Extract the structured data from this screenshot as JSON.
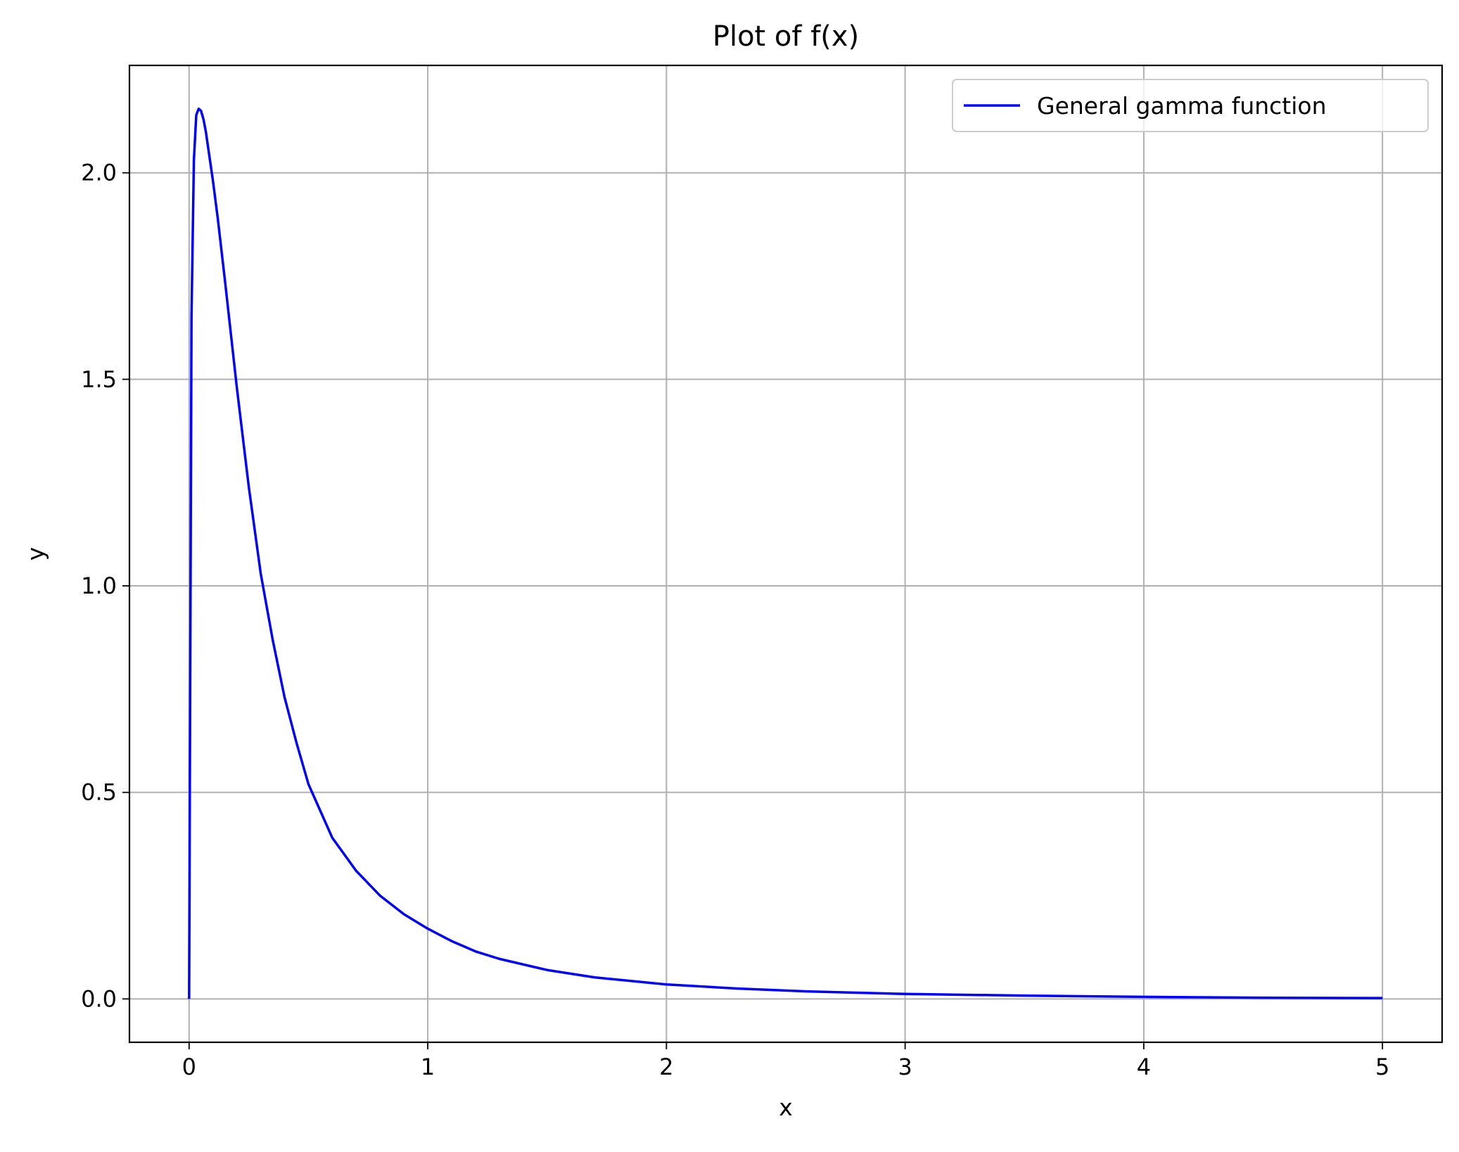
{
  "chart_data": {
    "type": "line",
    "title": "Plot of f(x)",
    "xlabel": "x",
    "ylabel": "y",
    "xlim": [
      -0.25,
      5.25
    ],
    "ylim": [
      -0.105,
      2.26
    ],
    "xticks": [
      0,
      1,
      2,
      3,
      4,
      5
    ],
    "xtick_labels": [
      "0",
      "1",
      "2",
      "3",
      "4",
      "5"
    ],
    "yticks": [
      0.0,
      0.5,
      1.0,
      1.5,
      2.0
    ],
    "ytick_labels": [
      "0.0",
      "0.5",
      "1.0",
      "1.5",
      "2.0"
    ],
    "grid": true,
    "legend": {
      "position": "top-right",
      "entries": [
        "General gamma function"
      ]
    },
    "series": [
      {
        "name": "General gamma function",
        "color": "#0000ff",
        "x": [
          0,
          0.01,
          0.02,
          0.03,
          0.04,
          0.05,
          0.06,
          0.07,
          0.08,
          0.1,
          0.12,
          0.15,
          0.2,
          0.25,
          0.3,
          0.35,
          0.4,
          0.45,
          0.5,
          0.6,
          0.7,
          0.8,
          0.9,
          1.0,
          1.1,
          1.2,
          1.3,
          1.5,
          1.7,
          2.0,
          2.3,
          2.6,
          3.0,
          3.5,
          4.0,
          4.5,
          5.0
        ],
        "y": [
          0.0,
          1.65,
          2.03,
          2.14,
          2.155,
          2.15,
          2.13,
          2.1,
          2.06,
          1.98,
          1.89,
          1.74,
          1.48,
          1.24,
          1.03,
          0.87,
          0.73,
          0.62,
          0.52,
          0.39,
          0.31,
          0.25,
          0.205,
          0.17,
          0.14,
          0.115,
          0.097,
          0.07,
          0.052,
          0.035,
          0.025,
          0.018,
          0.012,
          0.008,
          0.005,
          0.003,
          0.002
        ]
      }
    ]
  }
}
